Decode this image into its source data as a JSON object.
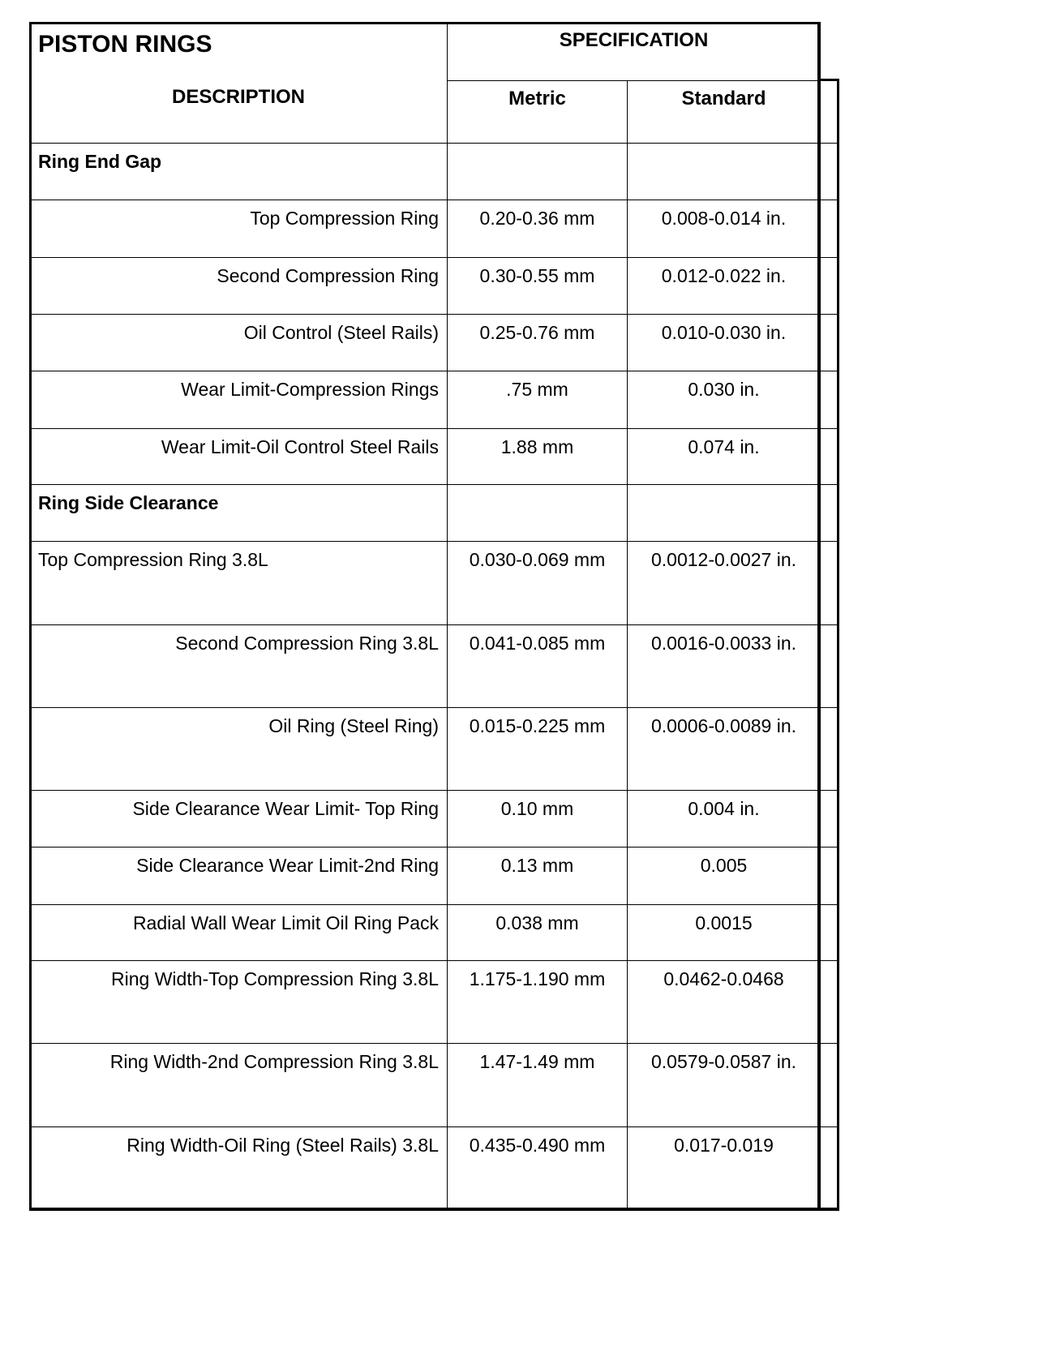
{
  "header": {
    "title": "PISTON RINGS",
    "description": "DESCRIPTION",
    "specification": "SPECIFICATION",
    "metric": "Metric",
    "standard": "Standard"
  },
  "rows": [
    {
      "description": "Ring End Gap",
      "metric": "",
      "standard": "",
      "section": true
    },
    {
      "description": "Top Compression Ring",
      "metric": "0.20-0.36 mm",
      "standard": "0.008-0.014 in."
    },
    {
      "description": "Second Compression Ring",
      "metric": "0.30-0.55 mm",
      "standard": "0.012-0.022 in."
    },
    {
      "description": "Oil Control (Steel Rails)",
      "metric": "0.25-0.76 mm",
      "standard": "0.010-0.030 in."
    },
    {
      "description": "Wear Limit-Compression Rings",
      "metric": ".75 mm",
      "standard": "0.030 in."
    },
    {
      "description": "Wear Limit-Oil Control Steel Rails",
      "metric": "1.88 mm",
      "standard": "0.074 in."
    },
    {
      "description": "Ring Side Clearance",
      "metric": "",
      "standard": "",
      "section": true
    },
    {
      "description": "Top Compression Ring 3.8L",
      "metric": "0.030-0.069 mm",
      "standard": "0.0012-0.0027 in.",
      "align": "left"
    },
    {
      "description": "Second Compression Ring 3.8L",
      "metric": "0.041-0.085 mm",
      "standard": "0.0016-0.0033 in."
    },
    {
      "description": "Oil Ring (Steel Ring)",
      "metric": "0.015-0.225 mm",
      "standard": "0.0006-0.0089 in."
    },
    {
      "description": "Side Clearance Wear Limit- Top Ring",
      "metric": "0.10 mm",
      "standard": "0.004 in."
    },
    {
      "description": "Side Clearance Wear Limit-2nd Ring",
      "metric": "0.13 mm",
      "standard": "0.005"
    },
    {
      "description": "Radial Wall Wear Limit Oil Ring Pack",
      "metric": "0.038 mm",
      "standard": "0.0015"
    },
    {
      "description": "Ring Width-Top Compression Ring 3.8L",
      "metric": "1.175-1.190 mm",
      "standard": "0.0462-0.0468"
    },
    {
      "description": "Ring Width-2nd Compression Ring 3.8L",
      "metric": "1.47-1.49 mm",
      "standard": "0.0579-0.0587 in."
    },
    {
      "description": "Ring Width-Oil Ring (Steel Rails) 3.8L",
      "metric": "0.435-0.490 mm",
      "standard": "0.017-0.019"
    }
  ]
}
